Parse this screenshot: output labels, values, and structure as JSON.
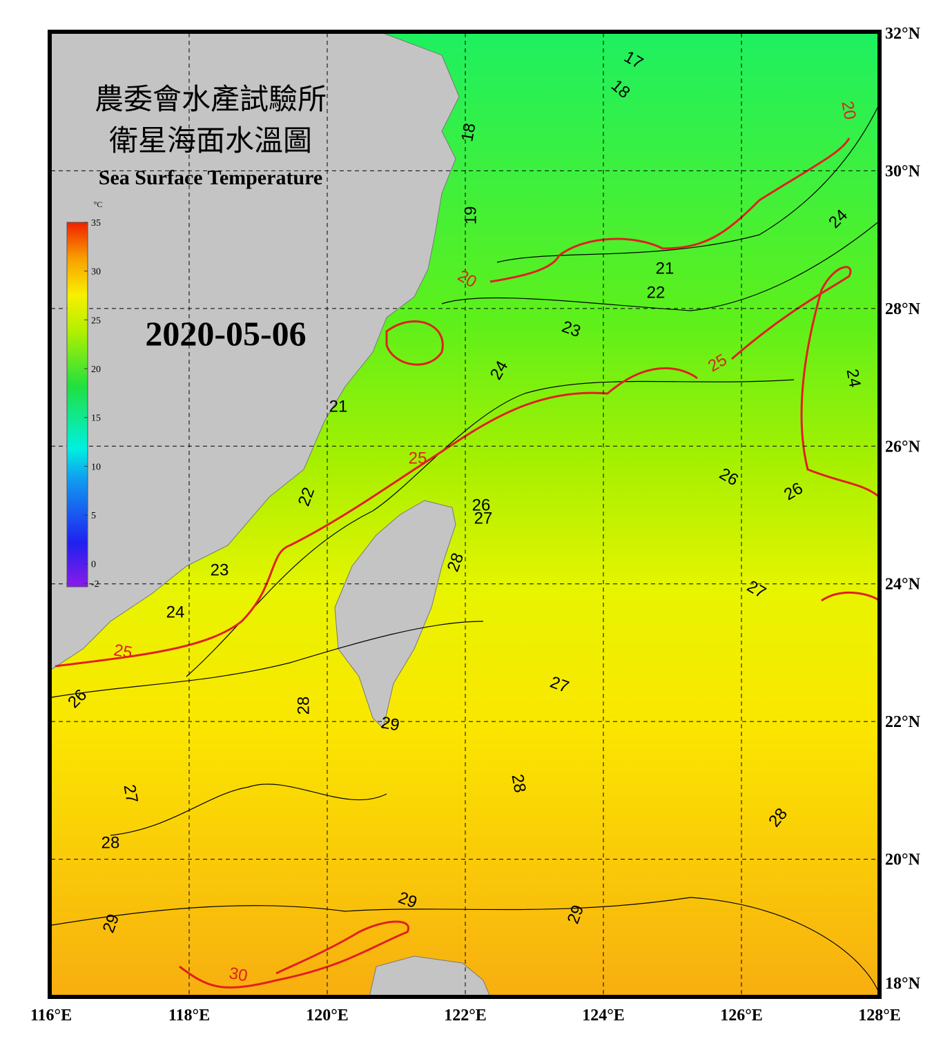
{
  "header": {
    "title_zh_1": "農委會水產試驗所",
    "title_zh_2": "衛星海面水溫圖",
    "title_en": "Sea Surface Temperature",
    "date": "2020-05-06"
  },
  "colorbar": {
    "unit": "°C",
    "range": [
      -2,
      35
    ],
    "ticks": [
      35,
      30,
      25,
      20,
      15,
      10,
      5,
      0,
      -2
    ]
  },
  "map": {
    "lonlim": [
      116,
      128
    ],
    "latlim": [
      18,
      32
    ],
    "lon_ticks": [
      {
        "value": 116,
        "label": "116°E"
      },
      {
        "value": 118,
        "label": "118°E"
      },
      {
        "value": 120,
        "label": "120°E"
      },
      {
        "value": 122,
        "label": "122°E"
      },
      {
        "value": 124,
        "label": "124°E"
      },
      {
        "value": 126,
        "label": "126°E"
      },
      {
        "value": 128,
        "label": "128°E"
      }
    ],
    "lat_ticks": [
      {
        "value": 18,
        "label": "18°N"
      },
      {
        "value": 20,
        "label": "20°N"
      },
      {
        "value": 22,
        "label": "22°N"
      },
      {
        "value": 24,
        "label": "24°N"
      },
      {
        "value": 26,
        "label": "26°N"
      },
      {
        "value": 28,
        "label": "28°N"
      },
      {
        "value": 30,
        "label": "30°N"
      },
      {
        "value": 32,
        "label": "32°N"
      }
    ],
    "contour_labels": [
      17,
      18,
      18,
      19,
      20,
      20,
      21,
      21,
      22,
      22,
      23,
      23,
      24,
      24,
      24,
      24,
      25,
      25,
      25,
      26,
      26,
      26,
      26,
      27,
      27,
      27,
      27,
      28,
      28,
      28,
      28,
      28,
      29,
      29,
      29,
      29,
      30
    ]
  }
}
